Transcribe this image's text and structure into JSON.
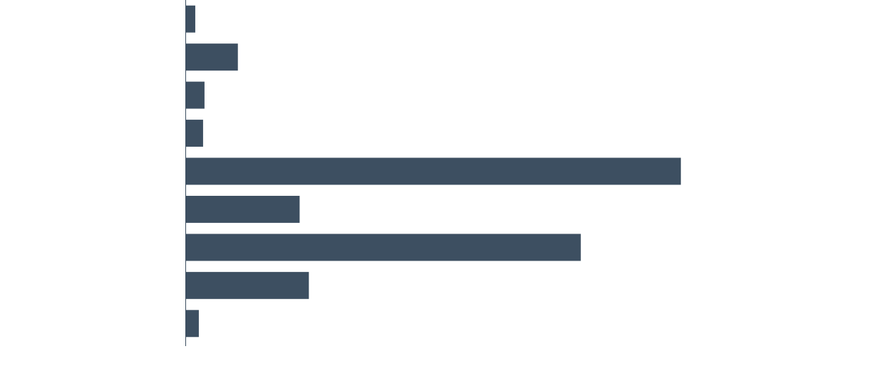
{
  "chart_data": {
    "type": "barh",
    "categories": [
      null,
      null,
      null,
      null,
      null,
      null,
      null,
      null,
      null
    ],
    "values": [
      13,
      73,
      26,
      24,
      697,
      160,
      556,
      173,
      18
    ],
    "color": "#3d4f61",
    "xlim": [
      0,
      1000
    ]
  }
}
